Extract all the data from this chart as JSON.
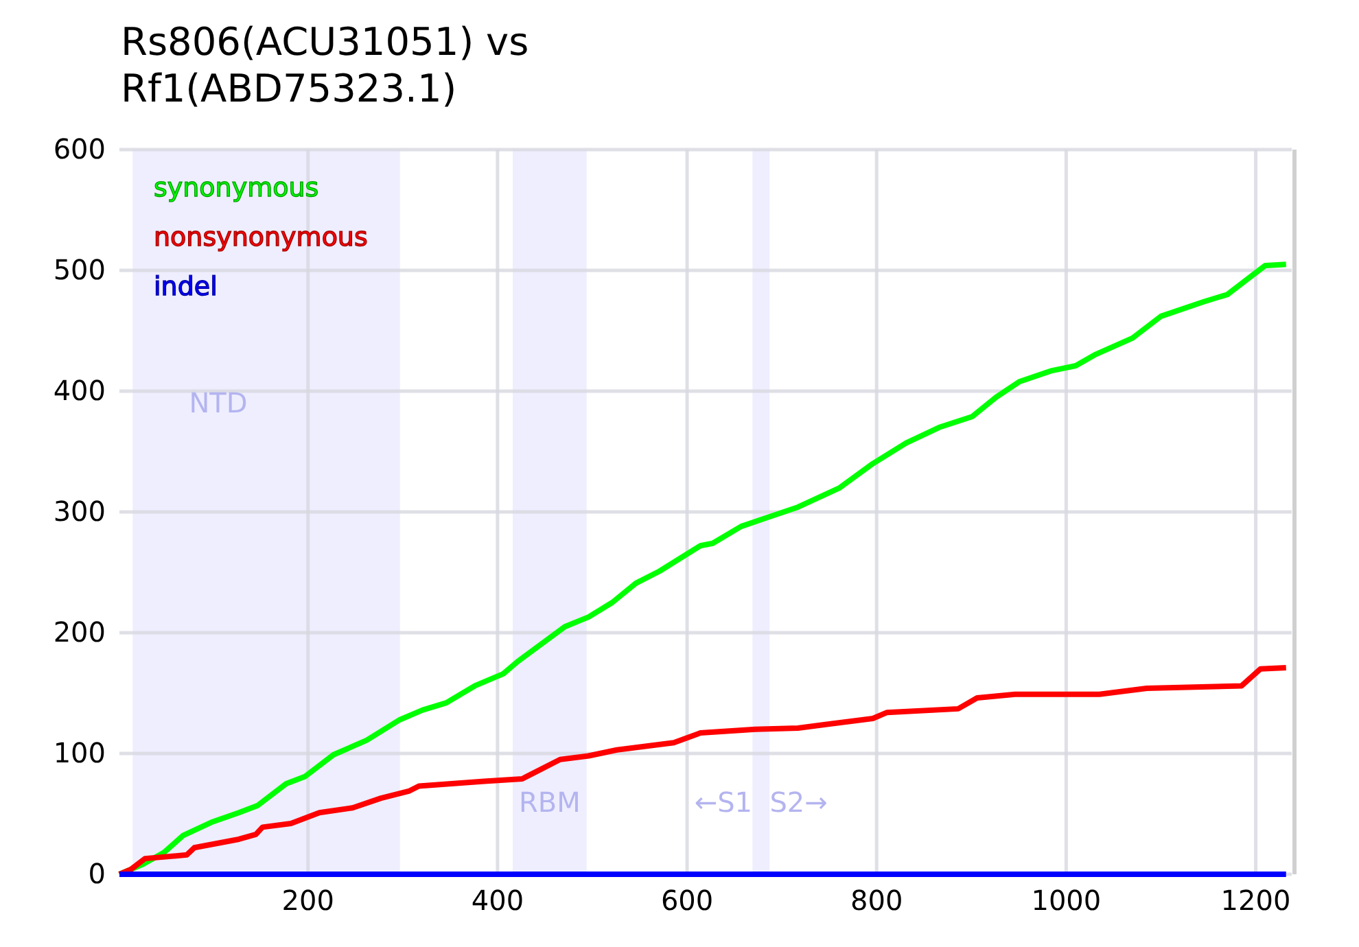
{
  "chart_data": {
    "type": "line",
    "title": "Rs806(ACU31051) vs Rf1(ABD75323.1)",
    "xlim": [
      1,
      1238
    ],
    "xticks": [
      200,
      400,
      600,
      800,
      1000,
      1200
    ],
    "ylim": [
      0,
      600
    ],
    "yticks": [
      0,
      100,
      200,
      300,
      400,
      500,
      600
    ],
    "grid": true,
    "legend": "top left",
    "marker": "none",
    "line_style": "solid",
    "bands": [
      {
        "axis": "x",
        "from": 15,
        "to": 297,
        "color": "#eeeeff",
        "label": "NTD"
      },
      {
        "axis": "x",
        "from": 416,
        "to": 494,
        "color": "#eeeeff",
        "label": "RBM"
      },
      {
        "axis": "x",
        "from": 669,
        "to": 687,
        "color": "#eeeeff",
        "label": "←S1  S2→"
      }
    ],
    "series": [
      {
        "name": "synonymous",
        "color": "#00ff00",
        "x": [
          1,
          25,
          48,
          68,
          98,
          127,
          147,
          177,
          197,
          227,
          262,
          297,
          321,
          346,
          376,
          406,
          421,
          471,
          496,
          521,
          546,
          571,
          614,
          627,
          657,
          687,
          717,
          761,
          796,
          831,
          866,
          901,
          926,
          951,
          985,
          1010,
          1030,
          1070,
          1100,
          1145,
          1170,
          1195,
          1210,
          1232
        ],
        "values": [
          0,
          8,
          18,
          32,
          43,
          51,
          57,
          75,
          81,
          99,
          111,
          128,
          136,
          142,
          156,
          166,
          176,
          205,
          213,
          225,
          241,
          251,
          272,
          274,
          288,
          296,
          304,
          320,
          340,
          357,
          370,
          379,
          395,
          408,
          417,
          421,
          430,
          444,
          462,
          474,
          480,
          495,
          504,
          505
        ]
      },
      {
        "name": "nonsynonymous",
        "color": "#ff0000",
        "x": [
          1,
          13,
          28,
          72,
          80,
          127,
          145,
          152,
          182,
          212,
          247,
          277,
          307,
          317,
          386,
          426,
          441,
          466,
          496,
          526,
          586,
          614,
          672,
          717,
          746,
          796,
          811,
          886,
          906,
          946,
          1035,
          1085,
          1185,
          1205,
          1232
        ],
        "values": [
          0,
          4,
          13,
          16,
          22,
          29,
          33,
          39,
          42,
          51,
          55,
          63,
          69,
          73,
          77,
          79,
          85,
          95,
          98,
          103,
          109,
          117,
          120,
          121,
          124,
          129,
          134,
          137,
          146,
          149,
          149,
          154,
          156,
          170,
          171
        ]
      },
      {
        "name": "indel",
        "color": "#0000ff",
        "x": [
          1,
          1232
        ],
        "values": [
          0,
          0
        ]
      }
    ]
  }
}
